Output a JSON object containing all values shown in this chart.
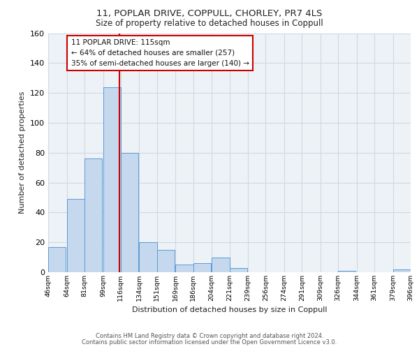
{
  "title_line1": "11, POPLAR DRIVE, COPPULL, CHORLEY, PR7 4LS",
  "title_line2": "Size of property relative to detached houses in Coppull",
  "xlabel": "Distribution of detached houses by size in Coppull",
  "ylabel": "Number of detached properties",
  "bar_left_edges": [
    46,
    64,
    81,
    99,
    116,
    134,
    151,
    169,
    186,
    204,
    221,
    239,
    256,
    274,
    291,
    309,
    326,
    344,
    361,
    379
  ],
  "bar_heights": [
    17,
    49,
    76,
    124,
    80,
    20,
    15,
    5,
    6,
    10,
    3,
    0,
    0,
    0,
    0,
    0,
    1,
    0,
    0,
    2
  ],
  "bin_width": 17,
  "bar_color": "#c5d8ed",
  "bar_edge_color": "#5b9bd5",
  "property_line_x": 115,
  "property_line_color": "#cc0000",
  "annotation_line1": "11 POPLAR DRIVE: 115sqm",
  "annotation_line2": "← 64% of detached houses are smaller (257)",
  "annotation_line3": "35% of semi-detached houses are larger (140) →",
  "annotation_box_color": "#ffffff",
  "annotation_box_edge_color": "#cc0000",
  "tick_labels": [
    "46sqm",
    "64sqm",
    "81sqm",
    "99sqm",
    "116sqm",
    "134sqm",
    "151sqm",
    "169sqm",
    "186sqm",
    "204sqm",
    "221sqm",
    "239sqm",
    "256sqm",
    "274sqm",
    "291sqm",
    "309sqm",
    "326sqm",
    "344sqm",
    "361sqm",
    "379sqm",
    "396sqm"
  ],
  "ylim": [
    0,
    160
  ],
  "yticks": [
    0,
    20,
    40,
    60,
    80,
    100,
    120,
    140,
    160
  ],
  "grid_color": "#d0d8e4",
  "background_color": "#edf2f7",
  "footer_line1": "Contains HM Land Registry data © Crown copyright and database right 2024.",
  "footer_line2": "Contains public sector information licensed under the Open Government Licence v3.0."
}
